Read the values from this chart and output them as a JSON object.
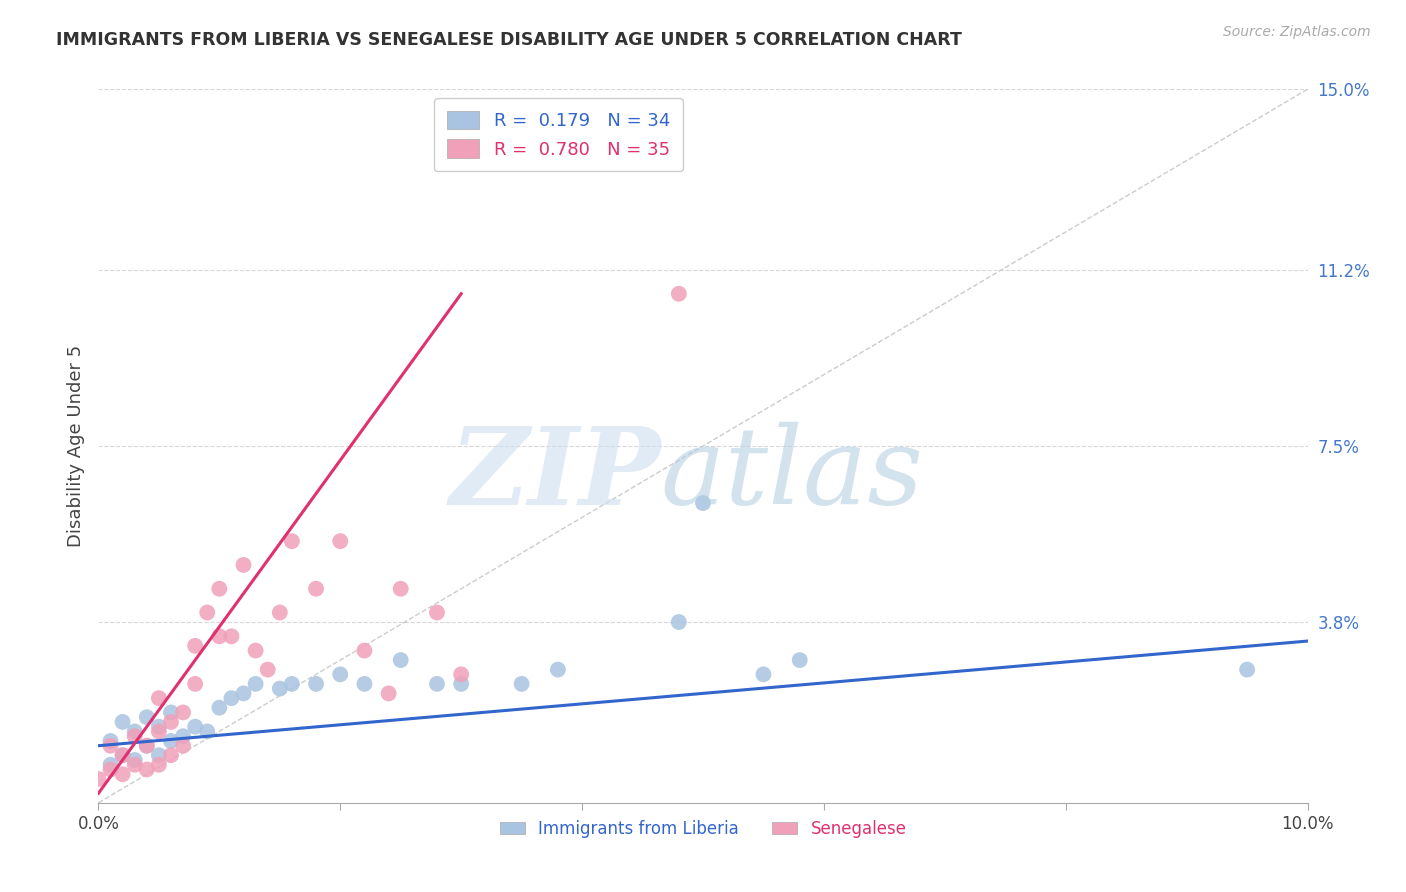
{
  "title": "IMMIGRANTS FROM LIBERIA VS SENEGALESE DISABILITY AGE UNDER 5 CORRELATION CHART",
  "source": "Source: ZipAtlas.com",
  "ylabel": "Disability Age Under 5",
  "xlim": [
    0,
    0.1
  ],
  "ylim": [
    0,
    0.15
  ],
  "xticks": [
    0.0,
    0.02,
    0.04,
    0.06,
    0.08,
    0.1
  ],
  "xticklabels": [
    "0.0%",
    "",
    "",
    "",
    "",
    "10.0%"
  ],
  "yticks": [
    0.0,
    0.038,
    0.075,
    0.112,
    0.15
  ],
  "yticklabels": [
    "",
    "3.8%",
    "7.5%",
    "11.2%",
    "15.0%"
  ],
  "background_color": "#ffffff",
  "grid_color": "#d8d8d8",
  "liberia_color": "#a8c4e0",
  "senegalese_color": "#f0a0b8",
  "liberia_line_color": "#3366cc",
  "senegalese_line_color": "#e03070",
  "diagonal_color": "#cccccc",
  "liberia_R": 0.179,
  "liberia_N": 34,
  "senegalese_R": 0.78,
  "senegalese_N": 35,
  "liberia_x": [
    0.001,
    0.001,
    0.002,
    0.002,
    0.003,
    0.003,
    0.004,
    0.004,
    0.005,
    0.005,
    0.006,
    0.006,
    0.007,
    0.008,
    0.009,
    0.01,
    0.011,
    0.012,
    0.013,
    0.015,
    0.016,
    0.018,
    0.02,
    0.022,
    0.025,
    0.028,
    0.03,
    0.035,
    0.038,
    0.048,
    0.05,
    0.055,
    0.058,
    0.095
  ],
  "liberia_y": [
    0.008,
    0.013,
    0.01,
    0.017,
    0.009,
    0.015,
    0.012,
    0.018,
    0.01,
    0.016,
    0.013,
    0.019,
    0.014,
    0.016,
    0.015,
    0.02,
    0.022,
    0.023,
    0.025,
    0.024,
    0.025,
    0.025,
    0.027,
    0.025,
    0.03,
    0.025,
    0.025,
    0.025,
    0.028,
    0.038,
    0.063,
    0.027,
    0.03,
    0.028
  ],
  "senegalese_x": [
    0.0,
    0.001,
    0.001,
    0.002,
    0.002,
    0.003,
    0.003,
    0.004,
    0.004,
    0.005,
    0.005,
    0.005,
    0.006,
    0.006,
    0.007,
    0.007,
    0.008,
    0.008,
    0.009,
    0.01,
    0.01,
    0.011,
    0.012,
    0.013,
    0.014,
    0.015,
    0.016,
    0.018,
    0.02,
    0.022,
    0.024,
    0.025,
    0.028,
    0.03,
    0.048
  ],
  "senegalese_y": [
    0.005,
    0.007,
    0.012,
    0.006,
    0.01,
    0.008,
    0.014,
    0.007,
    0.012,
    0.008,
    0.015,
    0.022,
    0.01,
    0.017,
    0.012,
    0.019,
    0.025,
    0.033,
    0.04,
    0.035,
    0.045,
    0.035,
    0.05,
    0.032,
    0.028,
    0.04,
    0.055,
    0.045,
    0.055,
    0.032,
    0.023,
    0.045,
    0.04,
    0.027,
    0.107
  ],
  "liberia_line_x": [
    0.0,
    0.1
  ],
  "liberia_line_y": [
    0.012,
    0.034
  ],
  "senegalese_line_x": [
    0.0,
    0.03
  ],
  "senegalese_line_y": [
    0.002,
    0.107
  ]
}
